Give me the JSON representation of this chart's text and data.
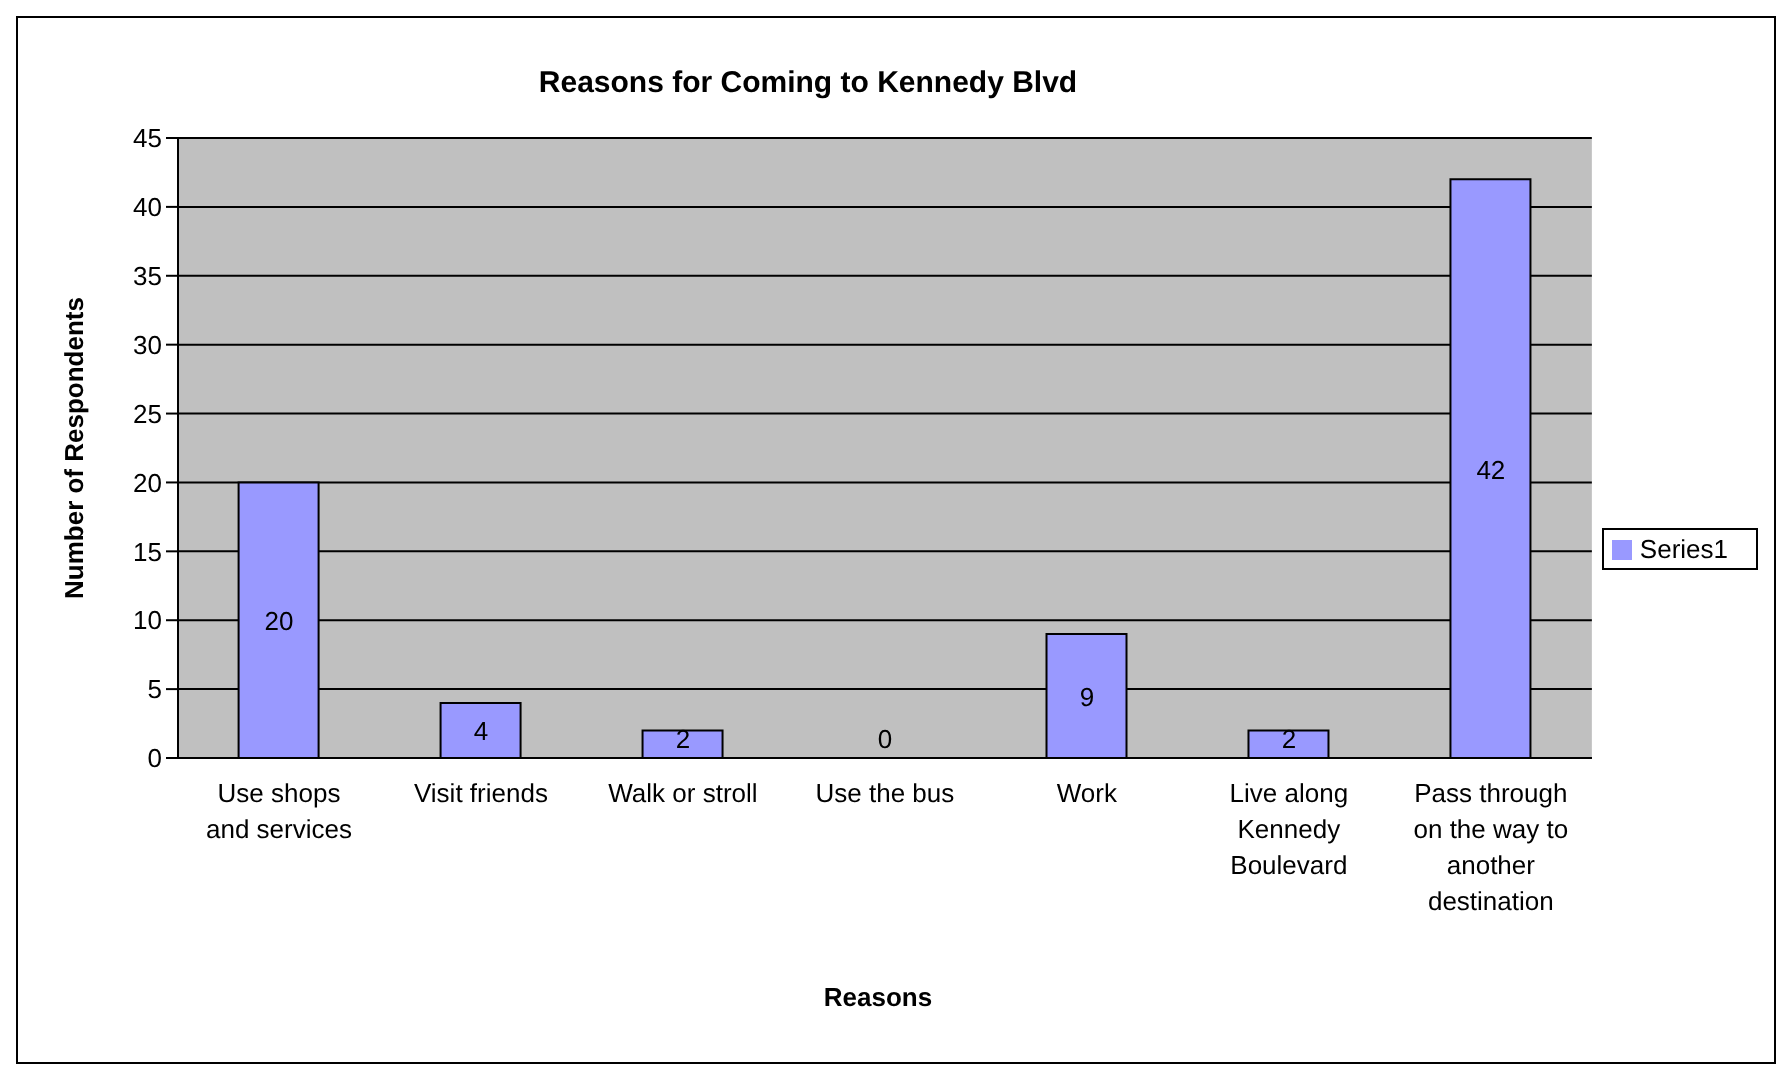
{
  "chart_data": {
    "type": "bar",
    "title": "Reasons for Coming to Kennedy Blvd",
    "xlabel": "Reasons",
    "ylabel": "Number of Respondents",
    "categories": [
      "Use shops and services",
      "Visit friends",
      "Walk or stroll",
      "Use the bus",
      "Work",
      "Live along Kennedy Boulevard",
      "Pass through on the way to another destination"
    ],
    "series": [
      {
        "name": "Series1",
        "color": "#9999ff",
        "values": [
          20,
          4,
          2,
          0,
          9,
          2,
          42
        ]
      }
    ],
    "ylim": [
      0,
      45
    ],
    "yticks": [
      0,
      5,
      10,
      15,
      20,
      25,
      30,
      35,
      40,
      45
    ],
    "grid": "y",
    "legend": "right",
    "data_labels": true
  }
}
